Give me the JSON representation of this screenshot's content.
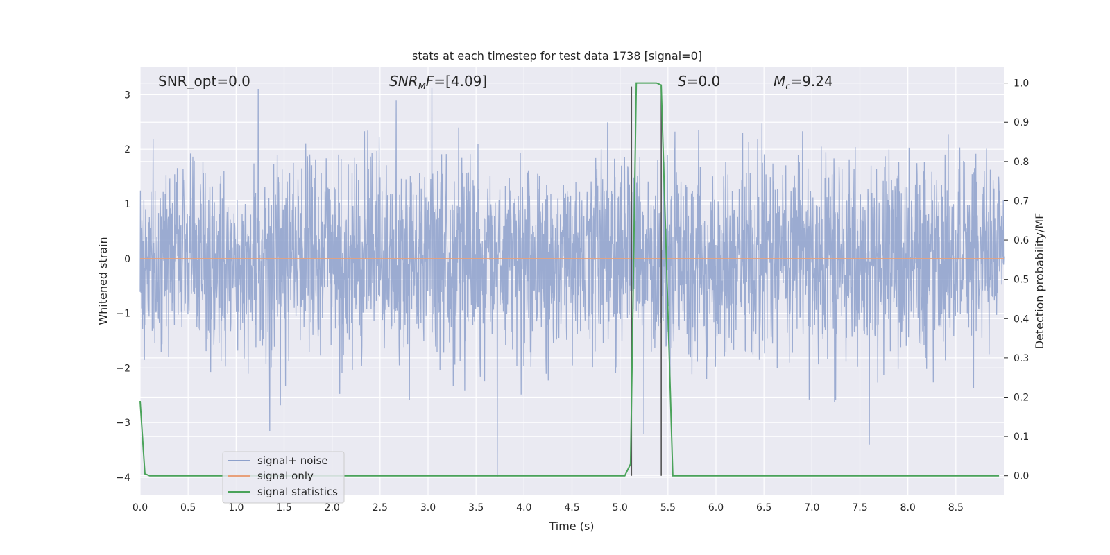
{
  "chart_data": {
    "type": "line",
    "title": "stats at each timestep for test data 1738 [signal=0]",
    "xlabel": "Time (s)",
    "ylabel_left": "Whitened strain",
    "ylabel_right": "Detection probability/MF",
    "xlim": [
      0.0,
      9.0
    ],
    "ylim_left": [
      -4.33,
      3.5
    ],
    "ylim_right": [
      -0.05,
      1.04
    ],
    "x_ticks": [
      "0.0",
      "0.5",
      "1.0",
      "1.5",
      "2.0",
      "2.5",
      "3.0",
      "3.5",
      "4.0",
      "4.5",
      "5.0",
      "5.5",
      "6.0",
      "6.5",
      "7.0",
      "7.5",
      "8.0",
      "8.5"
    ],
    "y_ticks_left": [
      "3",
      "2",
      "1",
      "0",
      "−1",
      "−2",
      "−3",
      "−4"
    ],
    "y_ticks_right": [
      "1.0",
      "0.9",
      "0.8",
      "0.7",
      "0.6",
      "0.5",
      "0.4",
      "0.3",
      "0.2",
      "0.1",
      "0.0"
    ],
    "grid": true,
    "legend_position": "lower-left",
    "legend": [
      {
        "label": "signal+ noise",
        "color": "#8da0cb"
      },
      {
        "label": "signal only",
        "color": "#e8a07a"
      },
      {
        "label": "signal statistics",
        "color": "#4aa35a"
      }
    ],
    "annotations": {
      "snr_opt": "SNR_opt=0.0",
      "snr_mf_label": "SNR",
      "snr_mf_sub": "M",
      "snr_mf_rest": "F",
      "snr_mf_value": "=[4.09]",
      "s_label": "S",
      "s_value": "=0.0",
      "mc_label": "M",
      "mc_sub": "c",
      "mc_value": "=9.24"
    },
    "series": [
      {
        "name": "signal+ noise",
        "axis": "left",
        "color": "#8da0cb",
        "x_range": [
          0.0,
          9.0
        ],
        "typical_abs": 1.7,
        "spikes": [
          {
            "x": 1.23,
            "y": 3.1
          },
          {
            "x": 3.04,
            "y": 3.12
          },
          {
            "x": 3.72,
            "y": -4.0
          },
          {
            "x": 5.25,
            "y": -3.2
          },
          {
            "x": 7.6,
            "y": -3.4
          },
          {
            "x": 1.35,
            "y": -3.15
          }
        ]
      },
      {
        "name": "signal only",
        "axis": "left",
        "color": "#e8a07a",
        "x": [
          0.0,
          9.0
        ],
        "y": [
          0.0,
          0.0
        ]
      },
      {
        "name": "signal statistics",
        "axis": "right",
        "color": "#4aa35a",
        "x": [
          0.0,
          0.05,
          0.1,
          5.05,
          5.11,
          5.17,
          5.38,
          5.43,
          5.55,
          8.95
        ],
        "y": [
          0.19,
          0.005,
          0.0,
          0.0,
          0.03,
          1.0,
          1.0,
          0.995,
          0.0,
          0.0
        ]
      }
    ],
    "markers": [
      {
        "x": 5.12,
        "color": "#555555"
      },
      {
        "x": 5.43,
        "color": "#555555"
      }
    ]
  }
}
